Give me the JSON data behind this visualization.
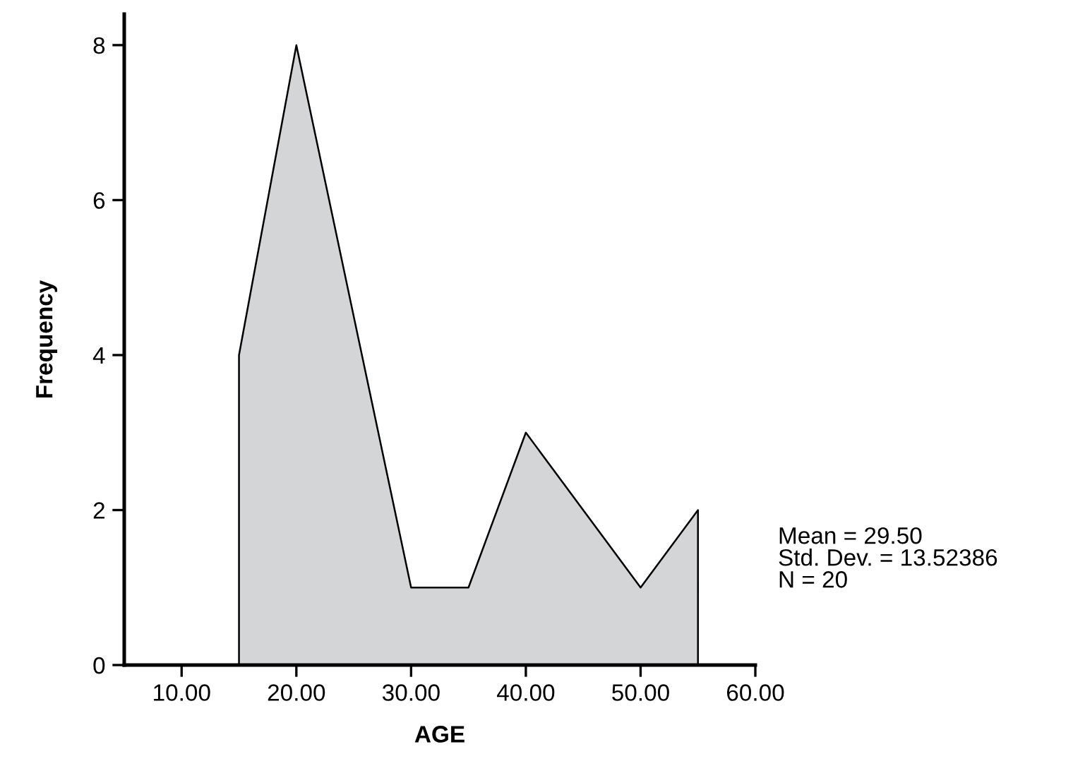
{
  "chart_data": {
    "type": "area",
    "xlabel": "AGE",
    "ylabel": "Frequency",
    "x": [
      15,
      15,
      20,
      30,
      35,
      40,
      50,
      55,
      55
    ],
    "series": [
      {
        "color": "#d4d5d7",
        "values": [
          0,
          4,
          8,
          1,
          1,
          3,
          1,
          2,
          0
        ]
      }
    ],
    "xlim": [
      5,
      60
    ],
    "ylim": [
      0,
      8.4
    ],
    "xticks": [
      {
        "value": 10,
        "label": "10.00"
      },
      {
        "value": 20,
        "label": "20.00"
      },
      {
        "value": 30,
        "label": "30.00"
      },
      {
        "value": 40,
        "label": "40.00"
      },
      {
        "value": 50,
        "label": "50.00"
      },
      {
        "value": 60,
        "label": "60.00"
      }
    ],
    "yticks": [
      0,
      2,
      4,
      6,
      8
    ],
    "grid": false,
    "annotations": [
      "Mean = 29.50\nStd. Dev. = 13.52386\nN = 20"
    ]
  }
}
